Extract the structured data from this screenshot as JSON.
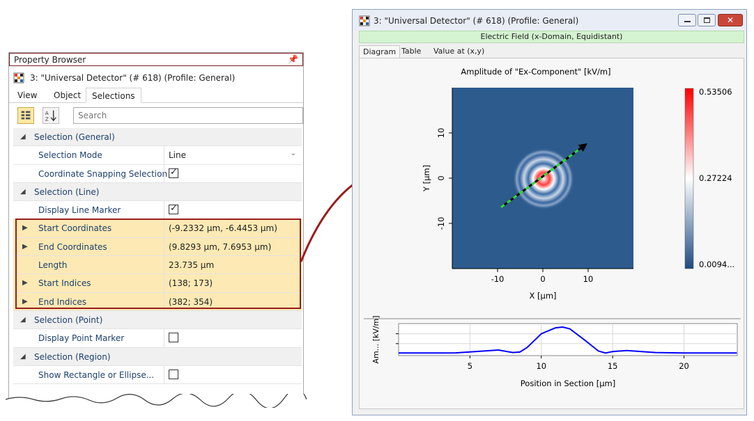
{
  "property_browser": {
    "title": "Property Browser",
    "pin_icon": "pin-icon",
    "object_title": "3: \"Universal Detector\" (# 618) (Profile: General)",
    "tabs": [
      "View",
      "Object",
      "Selections"
    ],
    "active_tab": "Selections",
    "search_placeholder": "Search",
    "categories": {
      "general": "Selection (General)",
      "line": "Selection (Line)",
      "point": "Selection (Point)",
      "region": "Selection (Region)"
    },
    "rows": {
      "selection_mode": {
        "label": "Selection Mode",
        "value": "Line"
      },
      "snapping": {
        "label": "Coordinate Snapping Selection",
        "checked": true
      },
      "line_marker": {
        "label": "Display Line Marker",
        "checked": true
      },
      "start_coords": {
        "label": "Start Coordinates",
        "value": "(-9.2332 µm, -6.4453 µm)"
      },
      "end_coords": {
        "label": "End Coordinates",
        "value": "(9.8293 µm, 7.6953 µm)"
      },
      "length": {
        "label": "Length",
        "value": "23.735 µm"
      },
      "start_indices": {
        "label": "Start Indices",
        "value": "(138; 173)"
      },
      "end_indices": {
        "label": "End Indices",
        "value": "(382; 354)"
      },
      "point_marker": {
        "label": "Display Point Marker",
        "checked": false
      },
      "rect_ellipse": {
        "label": "Show Rectangle or Ellipse...",
        "checked": false
      }
    }
  },
  "window": {
    "title": "3: \"Universal Detector\" (# 618) (Profile: General)",
    "subtitle": "Electric Field (x-Domain, Equidistant)",
    "tabs": [
      "Diagram",
      "Table",
      "Value at (x,y)"
    ],
    "active_tab": "Diagram",
    "colors": {
      "accent_green": "#d4f3d0",
      "field_blue": "#2d5b8e",
      "marker_red": "#e31a1c",
      "line_blue": "#0000ff"
    }
  },
  "chart_data": [
    {
      "type": "heatmap",
      "title": "Amplitude of \"Ex-Component\"  [kV/m]",
      "xlabel": "X [µm]",
      "ylabel": "Y [µm]",
      "xticks": [
        "-10",
        "0",
        "10"
      ],
      "yticks": [
        "-10",
        "0",
        "10"
      ],
      "colorbar": {
        "max": "0.53506",
        "mid": "0.27224",
        "min": "0.0094..."
      },
      "line_start": [
        -9.2332,
        -6.4453
      ],
      "line_end": [
        9.8293,
        7.6953
      ]
    },
    {
      "type": "line",
      "xlabel": "Position in Section [µm]",
      "ylabel": "Am... [kV/m]",
      "xticks": [
        "5",
        "10",
        "15",
        "20"
      ],
      "x": [
        0,
        2,
        4,
        6,
        7,
        8,
        8.5,
        9,
        10,
        11,
        11.5,
        12,
        13,
        14,
        14.5,
        15,
        16,
        18,
        20,
        22,
        23.7
      ],
      "y": [
        0.01,
        0.01,
        0.012,
        0.05,
        0.07,
        0.02,
        0.03,
        0.12,
        0.4,
        0.52,
        0.535,
        0.5,
        0.28,
        0.05,
        0.01,
        0.04,
        0.06,
        0.02,
        0.01,
        0.01,
        0.01
      ]
    }
  ]
}
